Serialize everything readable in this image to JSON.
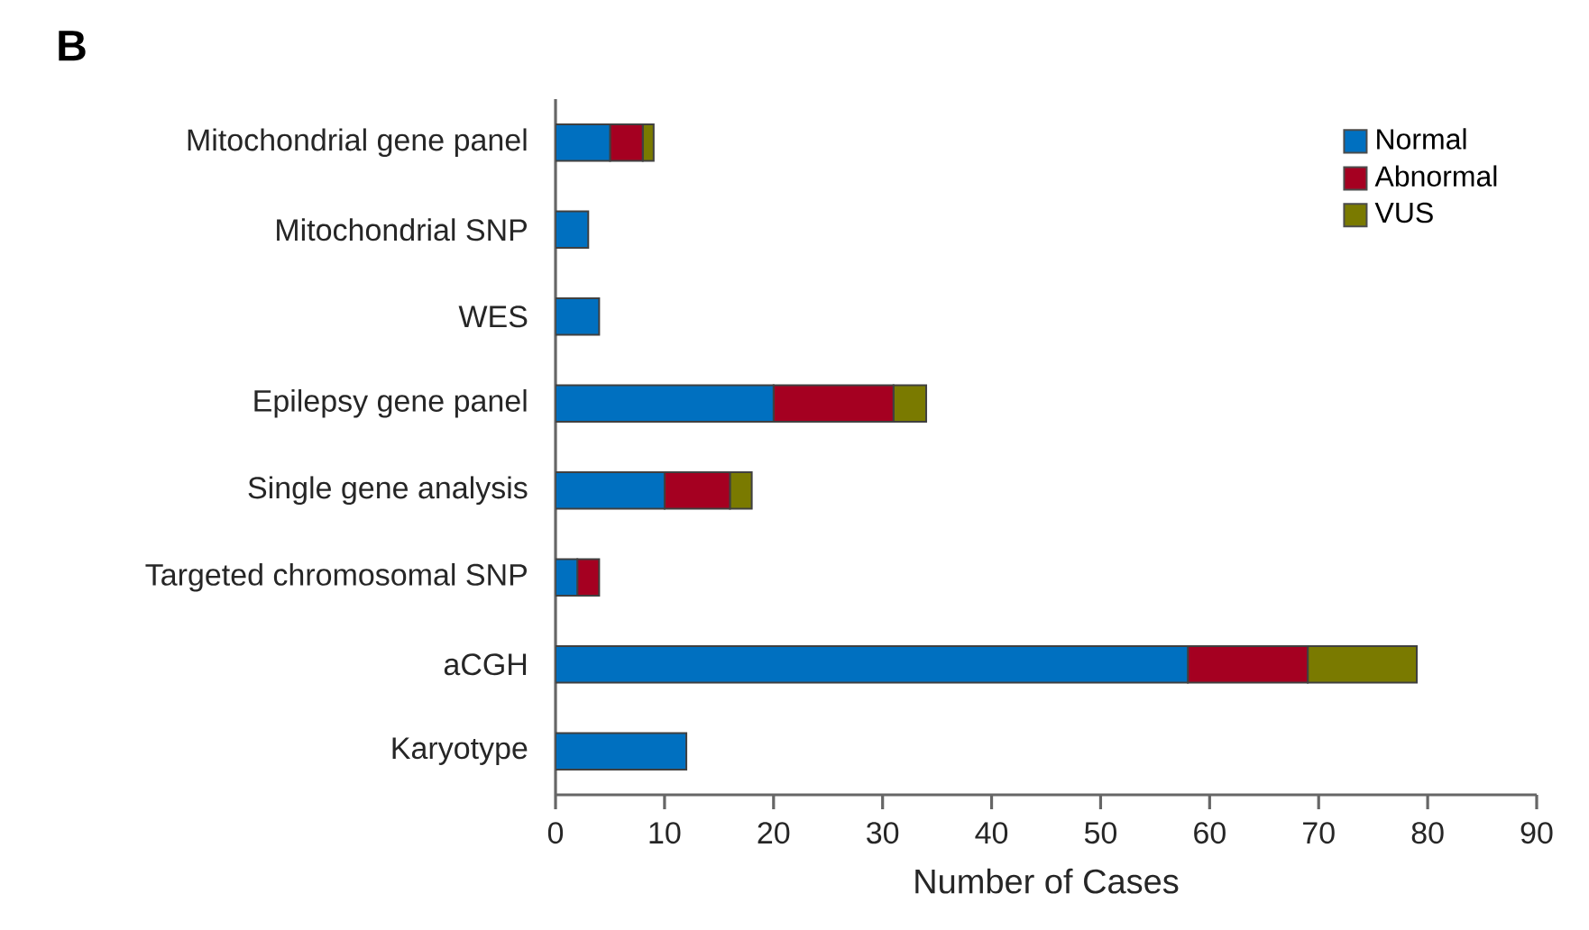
{
  "chart_data": {
    "type": "bar",
    "orientation": "horizontal",
    "stacked": true,
    "title": "B",
    "xlabel": "Number of Cases",
    "categories": [
      "Mitochondrial gene panel",
      "Mitochondrial SNP",
      "WES",
      "Epilepsy gene panel",
      "Single gene analysis",
      "Targeted chromosomal SNP",
      "aCGH",
      "Karyotype"
    ],
    "series": [
      {
        "name": "Normal",
        "color": "#0070c0",
        "values": [
          5,
          3,
          4,
          20,
          10,
          2,
          58,
          12
        ]
      },
      {
        "name": "Abnormal",
        "color": "#a50021",
        "values": [
          3,
          0,
          0,
          11,
          6,
          2,
          11,
          0
        ]
      },
      {
        "name": "VUS",
        "color": "#7a7a00",
        "values": [
          1,
          0,
          0,
          3,
          2,
          0,
          10,
          0
        ]
      }
    ],
    "xlim": [
      0,
      90
    ],
    "xticks": [
      0,
      10,
      20,
      30,
      40,
      50,
      60,
      70,
      80,
      90
    ],
    "grid": false,
    "legend": "top right"
  }
}
